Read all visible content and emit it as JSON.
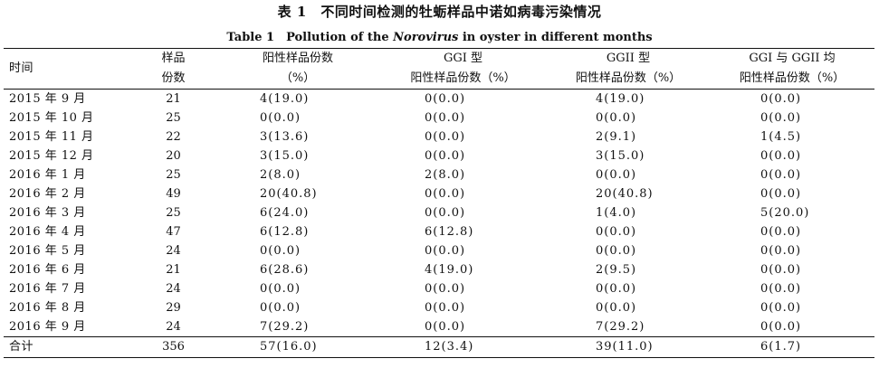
{
  "caption": {
    "zh": "表 1　不同时间检测的牡蛎样品中诺如病毒污染情况",
    "en_prefix": "Table 1　Pollution of the ",
    "en_italic": "Norovirus",
    "en_suffix": " in oyster in different months"
  },
  "headers": {
    "time": "时间",
    "samples_line1": "样品",
    "samples_line2": "份数",
    "positive_line1": "阳性样品份数",
    "positive_line2": "（%）",
    "ggi_line1": "GGI 型",
    "ggi_line2": "阳性样品份数（%）",
    "ggii_line1": "GGII 型",
    "ggii_line2": "阳性样品份数（%）",
    "both_line1": "GGI 与 GGII 均",
    "both_line2": "阳性样品份数（%）"
  },
  "rows": [
    {
      "time": "2015 年 9 月",
      "n": "21",
      "pos": "4(19.0)",
      "ggi": "0(0.0)",
      "ggii": "4(19.0)",
      "both": "0(0.0)"
    },
    {
      "time": "2015 年 10 月",
      "n": "25",
      "pos": "0(0.0)",
      "ggi": "0(0.0)",
      "ggii": "0(0.0)",
      "both": "0(0.0)"
    },
    {
      "time": "2015 年 11 月",
      "n": "22",
      "pos": "3(13.6)",
      "ggi": "0(0.0)",
      "ggii": "2(9.1)",
      "both": "1(4.5)"
    },
    {
      "time": "2015 年 12 月",
      "n": "20",
      "pos": "3(15.0)",
      "ggi": "0(0.0)",
      "ggii": "3(15.0)",
      "both": "0(0.0)"
    },
    {
      "time": "2016 年 1 月",
      "n": "25",
      "pos": "2(8.0)",
      "ggi": "2(8.0)",
      "ggii": "0(0.0)",
      "both": "0(0.0)"
    },
    {
      "time": "2016 年 2 月",
      "n": "49",
      "pos": "20(40.8)",
      "ggi": "0(0.0)",
      "ggii": "20(40.8)",
      "both": "0(0.0)"
    },
    {
      "time": "2016 年 3 月",
      "n": "25",
      "pos": "6(24.0)",
      "ggi": "0(0.0)",
      "ggii": "1(4.0)",
      "both": "5(20.0)"
    },
    {
      "time": "2016 年 4 月",
      "n": "47",
      "pos": "6(12.8)",
      "ggi": "6(12.8)",
      "ggii": "0(0.0)",
      "both": "0(0.0)"
    },
    {
      "time": "2016 年 5 月",
      "n": "24",
      "pos": "0(0.0)",
      "ggi": "0(0.0)",
      "ggii": "0(0.0)",
      "both": "0(0.0)"
    },
    {
      "time": "2016 年 6 月",
      "n": "21",
      "pos": "6(28.6)",
      "ggi": "4(19.0)",
      "ggii": "2(9.5)",
      "both": "0(0.0)"
    },
    {
      "time": "2016 年 7 月",
      "n": "24",
      "pos": "0(0.0)",
      "ggi": "0(0.0)",
      "ggii": "0(0.0)",
      "both": "0(0.0)"
    },
    {
      "time": "2016 年 8 月",
      "n": "29",
      "pos": "0(0.0)",
      "ggi": "0(0.0)",
      "ggii": "0(0.0)",
      "both": "0(0.0)"
    },
    {
      "time": "2016 年 9 月",
      "n": "24",
      "pos": "7(29.2)",
      "ggi": "0(0.0)",
      "ggii": "7(29.2)",
      "both": "0(0.0)"
    }
  ],
  "total": {
    "time": "合计",
    "n": "356",
    "pos": "57(16.0)",
    "ggi": "12(3.4)",
    "ggii": "39(11.0)",
    "both": "6(1.7)"
  }
}
